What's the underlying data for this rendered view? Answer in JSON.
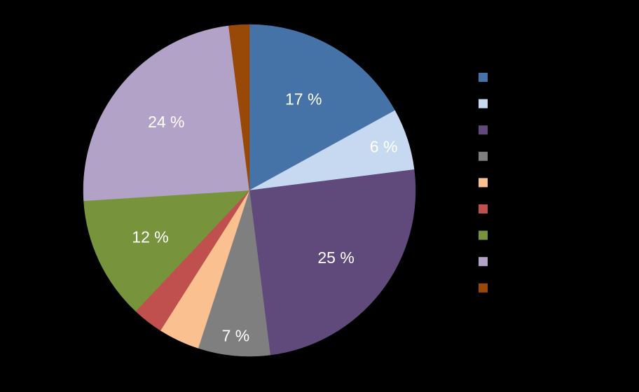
{
  "chart_data": {
    "type": "pie",
    "start_angle": "12 o'clock",
    "direction": "clockwise",
    "legend_position": "right",
    "slices": [
      {
        "value": 17,
        "label": "17 %",
        "color": "#4572A7"
      },
      {
        "value": 6,
        "label": "6 %",
        "color": "#C6D9F1"
      },
      {
        "value": 25,
        "label": "25 %",
        "color": "#604A7B"
      },
      {
        "value": 7,
        "label": "7 %",
        "color": "#7F7F7F"
      },
      {
        "value": 4,
        "label": "",
        "color": "#FAC090"
      },
      {
        "value": 3,
        "label": "",
        "color": "#C0504D"
      },
      {
        "value": 12,
        "label": "12 %",
        "color": "#77933C"
      },
      {
        "value": 24,
        "label": "24 %",
        "color": "#B3A2C7"
      },
      {
        "value": 2,
        "label": "",
        "color": "#984807"
      }
    ]
  }
}
